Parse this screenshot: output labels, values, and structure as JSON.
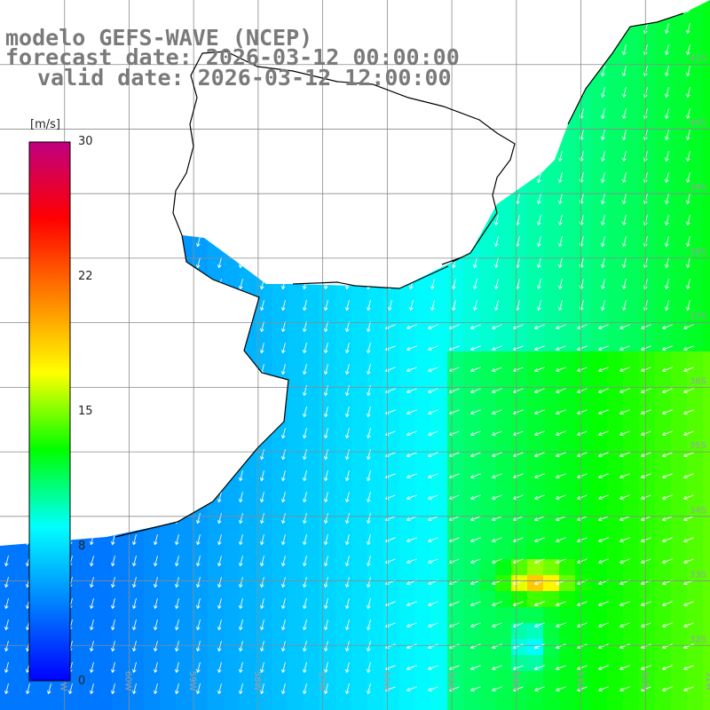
{
  "title": {
    "line1": "modelo GEFS-WAVE (NCEP)",
    "line2": "forecast date: 2026-03-12 00:00:00",
    "line3": "valid date: 2026-03-12 12:00:00"
  },
  "colorbar": {
    "unit": "[m/s]",
    "ticks": [
      {
        "label": "30",
        "value": 30
      },
      {
        "label": "22",
        "value": 22
      },
      {
        "label": "15",
        "value": 15
      },
      {
        "label": "8",
        "value": 8
      },
      {
        "label": "0",
        "value": 0
      }
    ],
    "stops": [
      "#0000ff",
      "#0080ff",
      "#00ffff",
      "#00ff00",
      "#ffff00",
      "#ff8000",
      "#ff0000",
      "#c00080"
    ]
  },
  "map": {
    "lon_range": [
      -62,
      -51
    ],
    "lat_range": [
      -42,
      -31
    ],
    "lon_labels": [
      "61W",
      "60W",
      "59W",
      "58W",
      "57W",
      "56W",
      "55W",
      "54W",
      "53W",
      "52W",
      "51W"
    ],
    "lat_labels": [
      "32S",
      "33S",
      "34S",
      "35S",
      "36S",
      "37S",
      "38S",
      "39S",
      "40S",
      "41S"
    ],
    "land_color": "#ffffff",
    "coast_color": "#000000",
    "grid_color": "#8a8a8a",
    "vector_color": "#ffffff",
    "wind_direction": "from east/northeast toward southwest",
    "speed_range_ms": [
      0,
      30
    ]
  }
}
